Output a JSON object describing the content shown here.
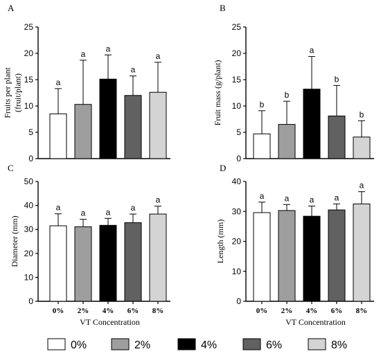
{
  "legend": {
    "entries": [
      {
        "label": "0%",
        "color": "#ffffff"
      },
      {
        "label": "2%",
        "color": "#9e9e9e"
      },
      {
        "label": "4%",
        "color": "#000000"
      },
      {
        "label": "6%",
        "color": "#616161"
      },
      {
        "label": "8%",
        "color": "#d4d4d4"
      }
    ]
  },
  "chart_data": [
    {
      "panel": "A",
      "type": "bar",
      "ylabel_lines": [
        "Fruits per plant",
        "(fruit/plant)"
      ],
      "categories": [
        "0%",
        "2%",
        "4%",
        "6%",
        "8%"
      ],
      "values": [
        8.5,
        10.3,
        15.1,
        12.0,
        12.6
      ],
      "errors": [
        4.8,
        8.4,
        4.6,
        3.7,
        5.7
      ],
      "letters": [
        "a",
        "a",
        "a",
        "a",
        "a"
      ],
      "colors": [
        "#ffffff",
        "#9e9e9e",
        "#000000",
        "#616161",
        "#d4d4d4"
      ],
      "ylim": [
        0,
        25
      ],
      "yticks": [
        0,
        5,
        10,
        15,
        20,
        25
      ],
      "show_xticks": false
    },
    {
      "panel": "B",
      "type": "bar",
      "ylabel_lines": [
        "Fruit mass (g/plant)"
      ],
      "categories": [
        "0%",
        "2%",
        "4%",
        "6%",
        "8%"
      ],
      "values": [
        4.7,
        6.5,
        13.2,
        8.1,
        4.1
      ],
      "errors": [
        4.4,
        4.4,
        6.2,
        5.8,
        3.1
      ],
      "letters": [
        "b",
        "b",
        "a",
        "b",
        "b"
      ],
      "colors": [
        "#ffffff",
        "#9e9e9e",
        "#000000",
        "#616161",
        "#d4d4d4"
      ],
      "ylim": [
        0,
        25
      ],
      "yticks": [
        0,
        5,
        10,
        15,
        20,
        25
      ],
      "show_xticks": false
    },
    {
      "panel": "C",
      "type": "bar",
      "ylabel_lines": [
        "Diameter (mm)"
      ],
      "xlabel": "VT Concentration",
      "categories": [
        "0%",
        "2%",
        "4%",
        "6%",
        "8%"
      ],
      "values": [
        31.5,
        31.1,
        31.7,
        32.8,
        36.4
      ],
      "errors": [
        5.0,
        3.1,
        2.9,
        3.6,
        3.3
      ],
      "letters": [
        "a",
        "a",
        "a",
        "a",
        "a"
      ],
      "colors": [
        "#ffffff",
        "#9e9e9e",
        "#000000",
        "#616161",
        "#d4d4d4"
      ],
      "ylim": [
        0,
        50
      ],
      "yticks": [
        0,
        10,
        20,
        30,
        40,
        50
      ],
      "show_xticks": true
    },
    {
      "panel": "D",
      "type": "bar",
      "ylabel_lines": [
        "Length (mm)"
      ],
      "xlabel": "VT Concentration",
      "categories": [
        "0%",
        "2%",
        "4%",
        "6%",
        "8%"
      ],
      "values": [
        29.6,
        30.3,
        28.4,
        30.5,
        32.5
      ],
      "errors": [
        3.5,
        2.0,
        3.4,
        2.0,
        4.1
      ],
      "letters": [
        "a",
        "a",
        "a",
        "a",
        "a"
      ],
      "colors": [
        "#ffffff",
        "#9e9e9e",
        "#000000",
        "#616161",
        "#d4d4d4"
      ],
      "ylim": [
        0,
        40
      ],
      "yticks": [
        0,
        10,
        20,
        30,
        40
      ],
      "show_xticks": true
    }
  ]
}
